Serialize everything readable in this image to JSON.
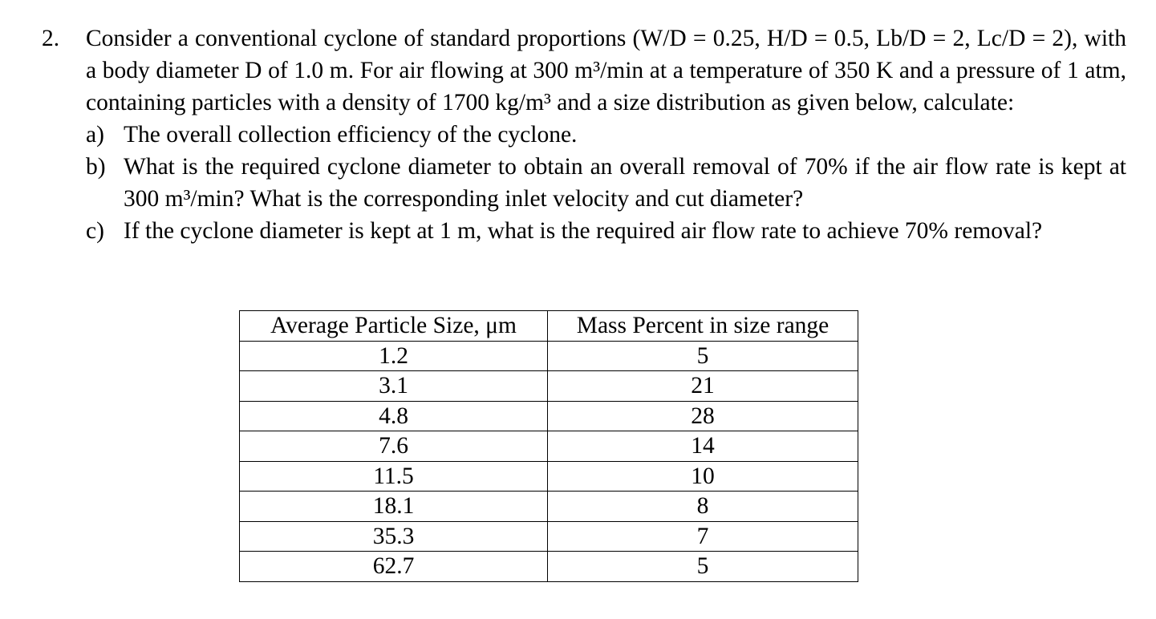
{
  "problem": {
    "number": "2.",
    "statement": "Consider a conventional cyclone of standard proportions (W/D = 0.25, H/D = 0.5, Lb/D = 2, Lc/D = 2), with a body diameter D of 1.0 m. For air flowing at 300 m³/min at a temperature of 350 K and a pressure of 1 atm, containing particles with a density of 1700 kg/m³ and a size distribution as given below, calculate:",
    "parts": [
      {
        "letter": "a)",
        "text": "The overall collection efficiency of the cyclone."
      },
      {
        "letter": "b)",
        "text": "What is the required cyclone diameter to obtain an overall removal of 70% if the air flow rate is kept at 300 m³/min? What is the corresponding inlet velocity and cut diameter?"
      },
      {
        "letter": "c)",
        "text": "If the cyclone diameter is kept at 1 m, what is the required air flow rate to achieve 70% removal?"
      }
    ]
  },
  "table": {
    "headers": [
      "Average Particle Size, μm",
      "Mass Percent in size range"
    ],
    "rows": [
      [
        "1.2",
        "5"
      ],
      [
        "3.1",
        "21"
      ],
      [
        "4.8",
        "28"
      ],
      [
        "7.6",
        "14"
      ],
      [
        "11.5",
        "10"
      ],
      [
        "18.1",
        "8"
      ],
      [
        "35.3",
        "7"
      ],
      [
        "62.7",
        "5"
      ]
    ]
  }
}
